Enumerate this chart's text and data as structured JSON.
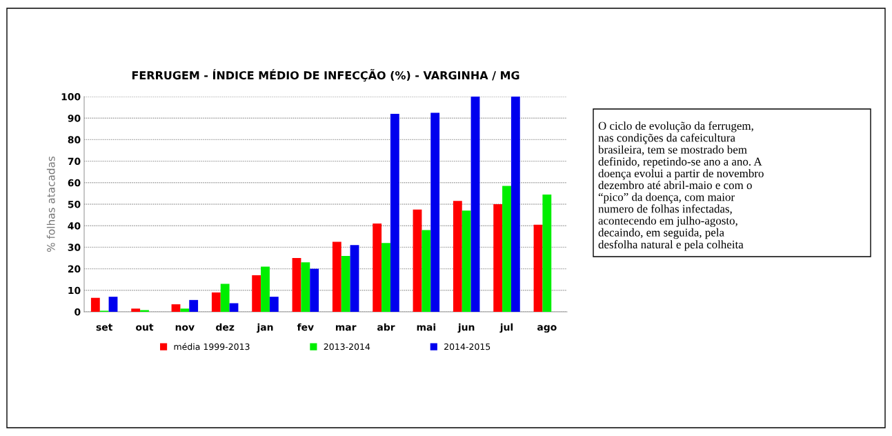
{
  "chart_data": {
    "type": "bar",
    "title": "FERRUGEM - ÍNDICE MÉDIO DE INFECÇÃO (%) - VARGINHA / MG",
    "ylabel": "% folhas atacadas",
    "categories": [
      "set",
      "out",
      "nov",
      "dez",
      "jan",
      "fev",
      "mar",
      "abr",
      "mai",
      "jun",
      "jul",
      "ago"
    ],
    "series": [
      {
        "name": "média 1999-2013",
        "color": "#ff0000",
        "values": [
          6.5,
          1.5,
          3.5,
          9,
          17,
          25,
          32.5,
          41,
          47.5,
          51.5,
          50,
          40.5
        ]
      },
      {
        "name": "2013-2014",
        "color": "#00ee00",
        "values": [
          0.5,
          0.8,
          1.5,
          13,
          21,
          23,
          26,
          32,
          38,
          47,
          58.5,
          54.5
        ]
      },
      {
        "name": "2014-2015",
        "color": "#0000ee",
        "values": [
          7,
          null,
          5.5,
          4,
          7,
          20,
          31,
          92,
          92.5,
          100,
          100,
          null
        ]
      }
    ],
    "ylim": [
      0,
      100
    ],
    "yticks": [
      0,
      10,
      20,
      30,
      40,
      50,
      60,
      70,
      80,
      90,
      100
    ],
    "grid": "y",
    "legend": "bottom",
    "annotations": [
      "O ciclo de evolução da ferrugem,\nnas condições da cafeicultura\nbrasileira, tem se mostrado bem\ndefinido, repetindo-se ano a ano. A\ndoença evolui a partir de novembro\ndezembro até abril-maio e com o\n“pico” da doença, com maior\nnumero de folhas infectadas,\nacontecendo em julho-agosto,\ndecaindo, em seguida, pela\ndesfolha natural e pela colheita"
    ]
  }
}
